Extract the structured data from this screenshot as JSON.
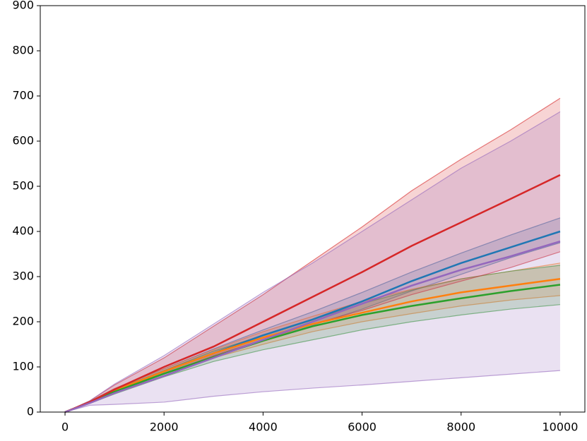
{
  "chart_data": {
    "type": "line_band",
    "x": [
      0,
      500,
      1000,
      2000,
      3000,
      4000,
      5000,
      6000,
      7000,
      8000,
      9000,
      10000
    ],
    "series": [
      {
        "color": "#1f77b4",
        "values": [
          0,
          22,
          48,
          90,
          130,
          170,
          205,
          245,
          290,
          330,
          365,
          400
        ],
        "lower": [
          0,
          20,
          44,
          84,
          122,
          158,
          192,
          228,
          268,
          305,
          342,
          375
        ],
        "upper": [
          0,
          24,
          52,
          96,
          140,
          182,
          222,
          265,
          310,
          352,
          392,
          430
        ]
      },
      {
        "color": "#ff7f0e",
        "values": [
          0,
          22,
          48,
          90,
          130,
          165,
          195,
          220,
          245,
          265,
          280,
          295
        ],
        "lower": [
          0,
          20,
          44,
          84,
          120,
          150,
          178,
          200,
          218,
          235,
          248,
          258
        ],
        "upper": [
          0,
          24,
          52,
          96,
          138,
          178,
          212,
          245,
          272,
          295,
          312,
          330
        ]
      },
      {
        "color": "#2ca02c",
        "values": [
          0,
          21,
          45,
          85,
          122,
          158,
          190,
          215,
          235,
          252,
          268,
          282
        ],
        "lower": [
          0,
          19,
          40,
          78,
          112,
          138,
          160,
          182,
          200,
          215,
          228,
          238
        ],
        "upper": [
          0,
          23,
          50,
          92,
          135,
          170,
          205,
          240,
          270,
          295,
          312,
          325
        ]
      },
      {
        "color": "#d62728",
        "values": [
          0,
          22,
          50,
          100,
          145,
          200,
          255,
          310,
          368,
          420,
          472,
          525
        ],
        "lower": [
          0,
          20,
          45,
          85,
          125,
          160,
          195,
          225,
          260,
          290,
          320,
          355
        ],
        "upper": [
          0,
          25,
          60,
          120,
          190,
          260,
          335,
          410,
          490,
          560,
          625,
          695
        ]
      },
      {
        "color": "#9467bd",
        "values": [
          0,
          20,
          42,
          80,
          120,
          160,
          200,
          240,
          280,
          315,
          345,
          378
        ],
        "lower": [
          0,
          15,
          17,
          22,
          35,
          45,
          53,
          60,
          68,
          76,
          84,
          92
        ],
        "upper": [
          0,
          25,
          62,
          125,
          195,
          265,
          330,
          400,
          470,
          540,
          600,
          665
        ]
      }
    ],
    "xlim": [
      -500,
      10500
    ],
    "ylim": [
      0,
      900
    ],
    "xticks": [
      0,
      2000,
      4000,
      6000,
      8000,
      10000
    ],
    "yticks": [
      0,
      100,
      200,
      300,
      400,
      500,
      600,
      700,
      800,
      900
    ]
  }
}
